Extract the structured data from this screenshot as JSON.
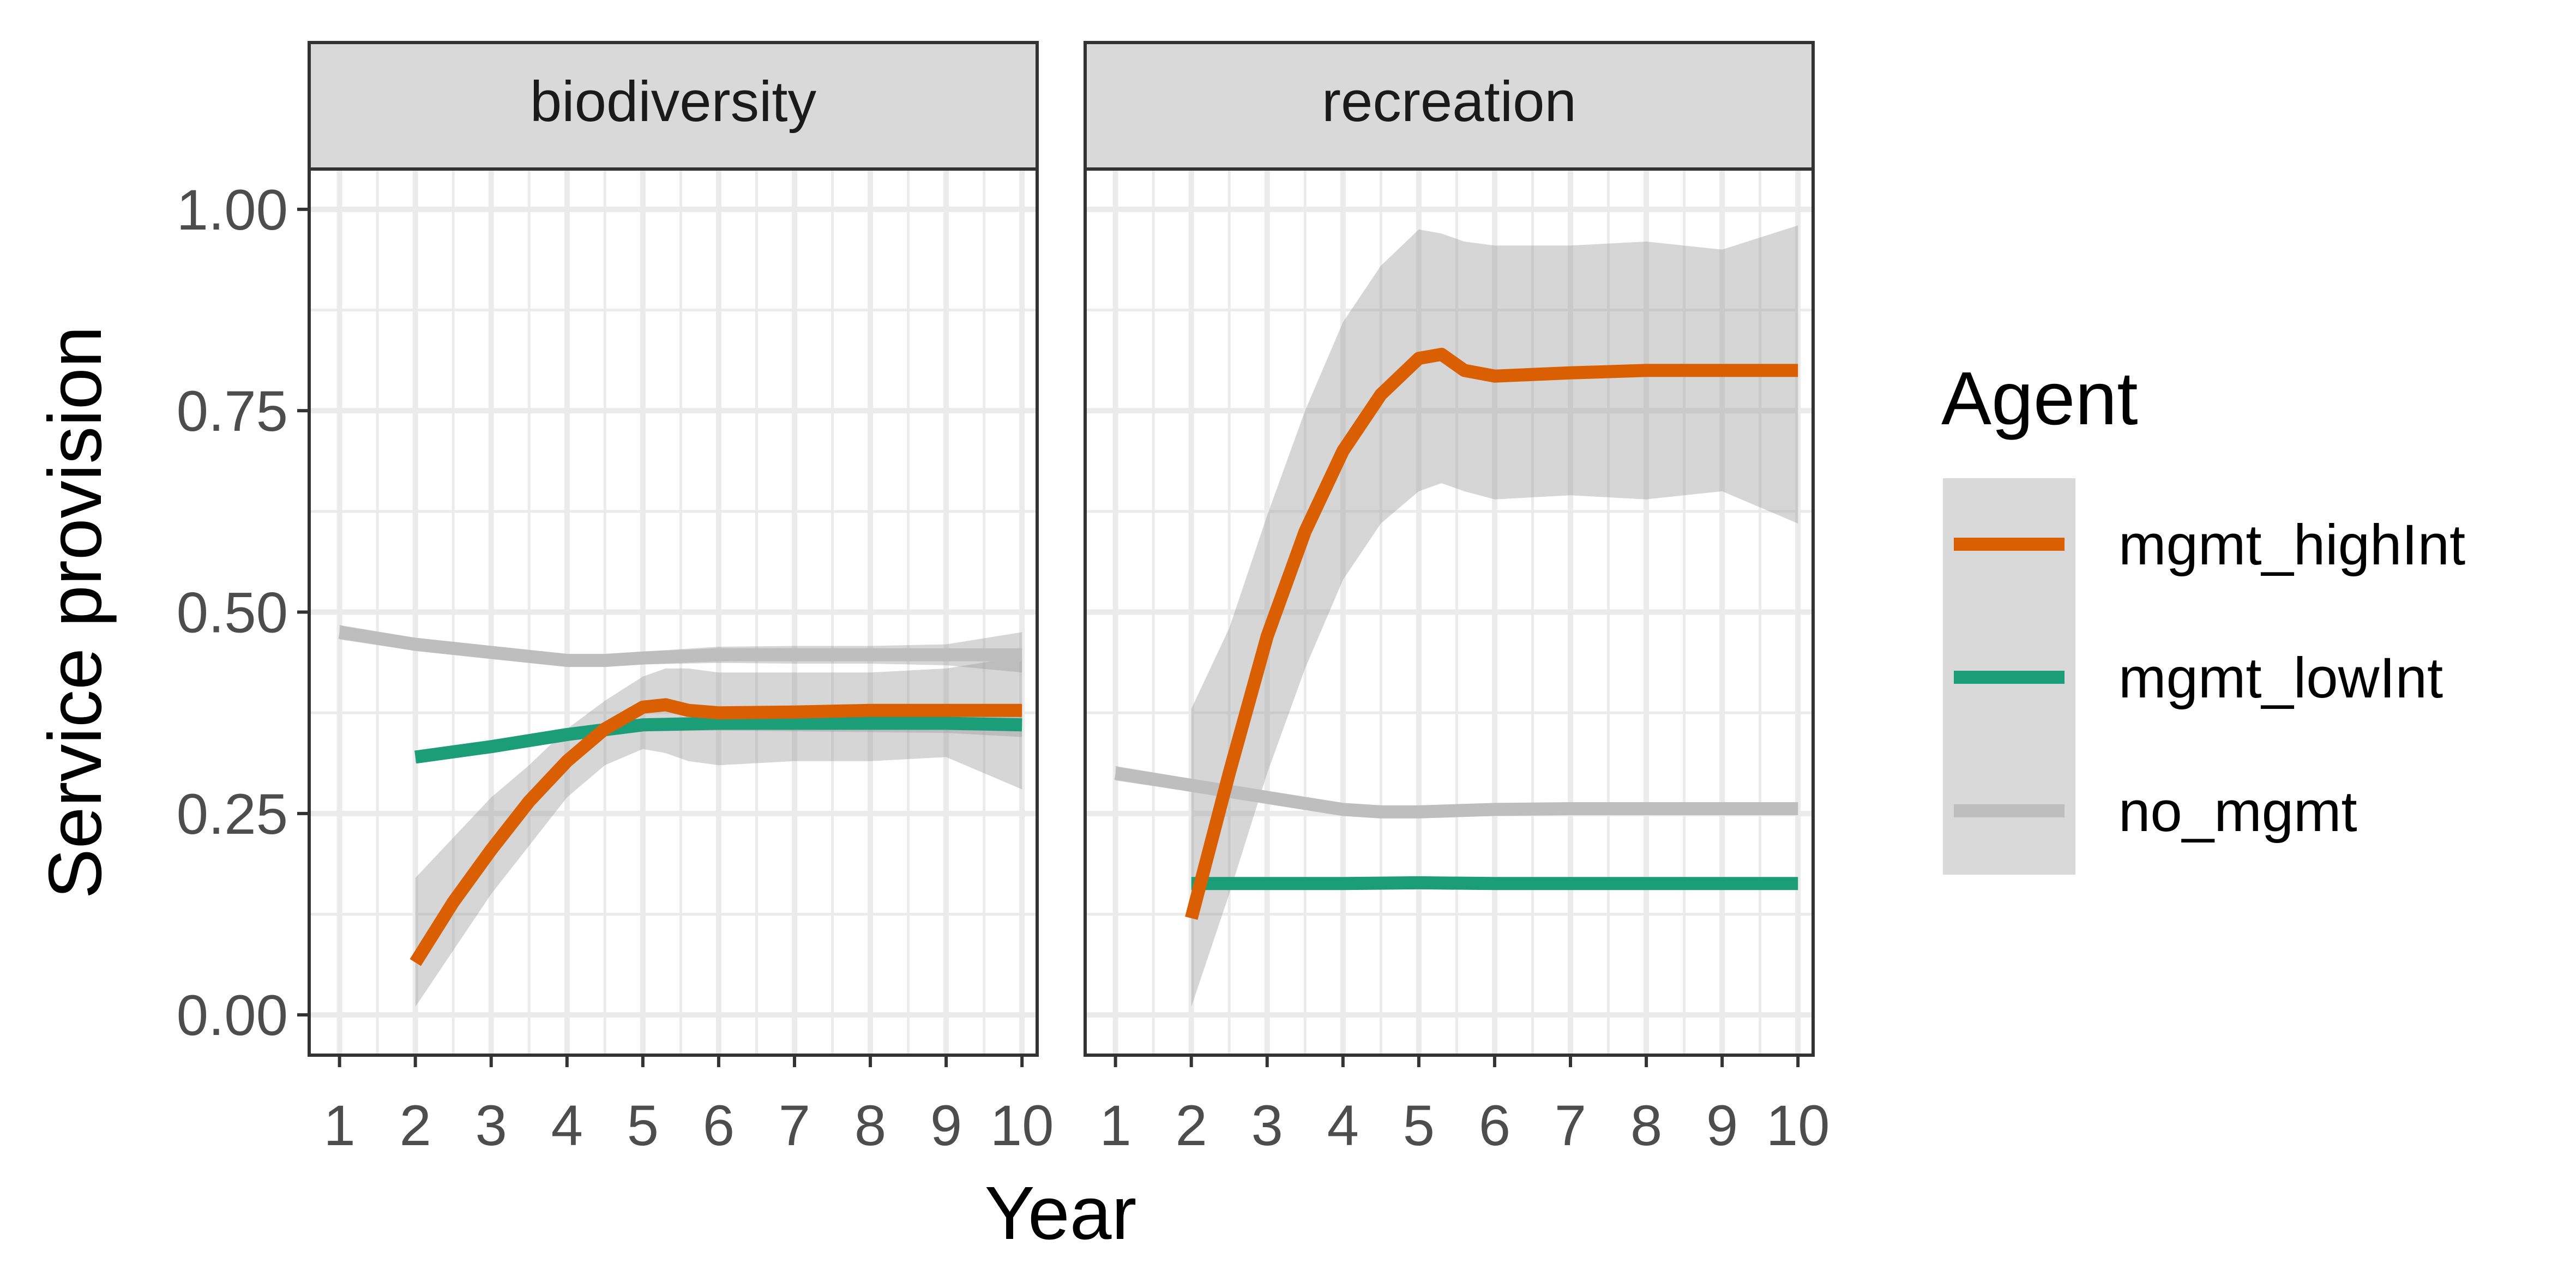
{
  "chart_data": {
    "type": "line",
    "xlabel": "Year",
    "ylabel": "Service provision",
    "xlim": [
      0.6,
      10.2
    ],
    "ylim": [
      -0.05,
      1.05
    ],
    "x_ticks": [
      1,
      2,
      3,
      4,
      5,
      6,
      7,
      8,
      9,
      10
    ],
    "x_tick_labels": [
      "1",
      "2",
      "3",
      "4",
      "5",
      "6",
      "7",
      "8",
      "9",
      "10"
    ],
    "y_ticks": [
      0,
      0.25,
      0.5,
      0.75,
      1.0
    ],
    "y_tick_labels": [
      "0.00",
      "0.25",
      "0.50",
      "0.75",
      "1.00"
    ],
    "grid": true,
    "legend": {
      "title": "Agent",
      "placement": "right",
      "entries": [
        {
          "label": "mgmt_highInt",
          "color": "#D95F02"
        },
        {
          "label": "mgmt_lowInt",
          "color": "#1B9E77"
        },
        {
          "label": "no_mgmt",
          "color": "#BEBEBE"
        }
      ]
    },
    "panels": [
      {
        "facet": "biodiversity",
        "series": [
          {
            "name": "no_mgmt",
            "color": "#BEBEBE",
            "x": [
              1,
              2,
              3,
              4,
              4.5,
              5,
              6,
              7,
              8,
              9,
              10
            ],
            "y": [
              0.475,
              0.46,
              0.45,
              0.44,
              0.44,
              0.443,
              0.447,
              0.447,
              0.447,
              0.447,
              0.447
            ],
            "ribbon_lower": [
              0.466,
              0.452,
              0.443,
              0.434,
              0.433,
              0.435,
              0.437,
              0.436,
              0.436,
              0.434,
              0.425
            ],
            "ribbon_upper": [
              0.484,
              0.468,
              0.457,
              0.446,
              0.447,
              0.451,
              0.457,
              0.458,
              0.458,
              0.46,
              0.475
            ]
          },
          {
            "name": "mgmt_lowInt",
            "color": "#1B9E77",
            "x": [
              2,
              3,
              4,
              5,
              6,
              7,
              8,
              9,
              10
            ],
            "y": [
              0.32,
              0.333,
              0.348,
              0.36,
              0.362,
              0.362,
              0.362,
              0.362,
              0.36
            ],
            "ribbon_lower": [
              0.313,
              0.327,
              0.342,
              0.352,
              0.353,
              0.352,
              0.351,
              0.35,
              0.345
            ],
            "ribbon_upper": [
              0.327,
              0.339,
              0.354,
              0.368,
              0.371,
              0.372,
              0.373,
              0.374,
              0.375
            ]
          },
          {
            "name": "mgmt_highInt",
            "color": "#D95F02",
            "x": [
              2,
              2.5,
              3,
              3.5,
              4,
              4.5,
              5,
              5.3,
              5.6,
              6,
              7,
              8,
              9,
              10
            ],
            "y": [
              0.065,
              0.14,
              0.205,
              0.265,
              0.315,
              0.355,
              0.382,
              0.385,
              0.378,
              0.375,
              0.376,
              0.378,
              0.378,
              0.378
            ],
            "ribbon_lower": [
              0.01,
              0.08,
              0.15,
              0.21,
              0.27,
              0.31,
              0.33,
              0.325,
              0.315,
              0.31,
              0.315,
              0.315,
              0.32,
              0.28
            ],
            "ribbon_upper": [
              0.17,
              0.22,
              0.27,
              0.31,
              0.355,
              0.39,
              0.42,
              0.43,
              0.43,
              0.425,
              0.425,
              0.425,
              0.43,
              0.445
            ]
          }
        ]
      },
      {
        "facet": "recreation",
        "series": [
          {
            "name": "no_mgmt",
            "color": "#BEBEBE",
            "x": [
              1,
              2,
              3,
              4,
              4.5,
              5,
              6,
              7,
              8,
              9,
              10
            ],
            "y": [
              0.3,
              0.285,
              0.27,
              0.255,
              0.252,
              0.252,
              0.255,
              0.256,
              0.256,
              0.256,
              0.256
            ],
            "ribbon_lower": [
              0.291,
              0.277,
              0.263,
              0.249,
              0.246,
              0.246,
              0.249,
              0.25,
              0.249,
              0.249,
              0.248
            ],
            "ribbon_upper": [
              0.309,
              0.293,
              0.277,
              0.261,
              0.258,
              0.258,
              0.261,
              0.262,
              0.263,
              0.263,
              0.264
            ]
          },
          {
            "name": "mgmt_lowInt",
            "color": "#1B9E77",
            "x": [
              2,
              3,
              4,
              5,
              6,
              7,
              8,
              9,
              10
            ],
            "y": [
              0.163,
              0.163,
              0.163,
              0.164,
              0.163,
              0.163,
              0.163,
              0.163,
              0.163
            ],
            "ribbon_lower": [
              0.159,
              0.159,
              0.159,
              0.16,
              0.159,
              0.159,
              0.159,
              0.159,
              0.158
            ],
            "ribbon_upper": [
              0.167,
              0.167,
              0.167,
              0.168,
              0.167,
              0.167,
              0.167,
              0.167,
              0.168
            ]
          },
          {
            "name": "mgmt_highInt",
            "color": "#D95F02",
            "x": [
              2,
              2.5,
              3,
              3.5,
              4,
              4.5,
              5,
              5.3,
              5.6,
              6,
              7,
              8,
              9,
              10
            ],
            "y": [
              0.12,
              0.3,
              0.47,
              0.6,
              0.7,
              0.77,
              0.815,
              0.82,
              0.8,
              0.793,
              0.797,
              0.8,
              0.8,
              0.8
            ],
            "ribbon_lower": [
              0.01,
              0.15,
              0.3,
              0.43,
              0.54,
              0.61,
              0.65,
              0.66,
              0.65,
              0.64,
              0.645,
              0.64,
              0.65,
              0.61
            ],
            "ribbon_upper": [
              0.38,
              0.48,
              0.62,
              0.75,
              0.86,
              0.93,
              0.975,
              0.97,
              0.96,
              0.955,
              0.955,
              0.96,
              0.95,
              0.98
            ]
          }
        ]
      }
    ]
  }
}
